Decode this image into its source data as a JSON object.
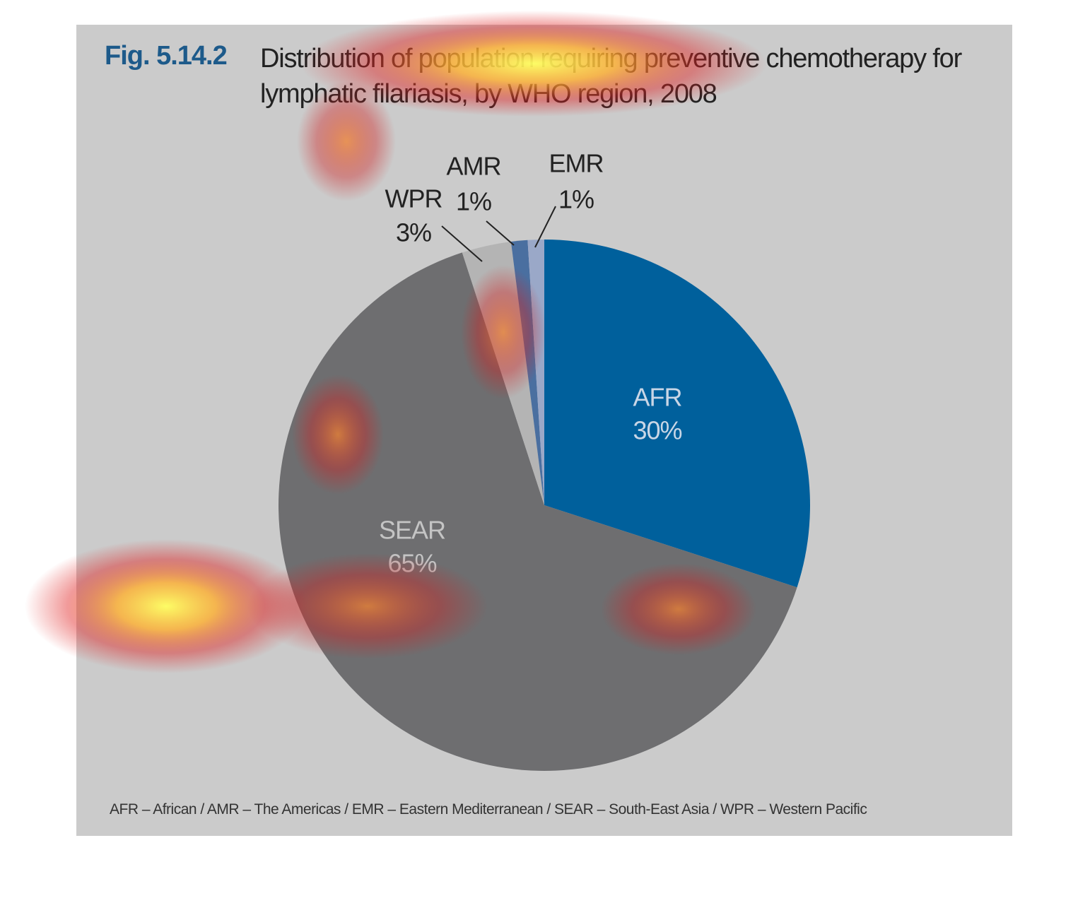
{
  "chart_data": {
    "type": "pie",
    "figure_number": "Fig. 5.14.2",
    "title": "Distribution of population requiring preventive chemotherapy for lymphatic filariasis, by WHO region, 2008",
    "categories": [
      "AFR",
      "SEAR",
      "WPR",
      "AMR",
      "EMR"
    ],
    "values": [
      30,
      65,
      3,
      1,
      1
    ],
    "value_labels": [
      "30%",
      "65%",
      "3%",
      "1%",
      "1%"
    ],
    "colors": [
      "#00609c",
      "#6e6e70",
      "#b4b4b4",
      "#4a6fa0",
      "#9aa8c8"
    ],
    "note": "AFR – African / AMR – The Americas / EMR – Eastern Mediterranean / SEAR – South-East Asia / WPR – Western Pacific"
  }
}
